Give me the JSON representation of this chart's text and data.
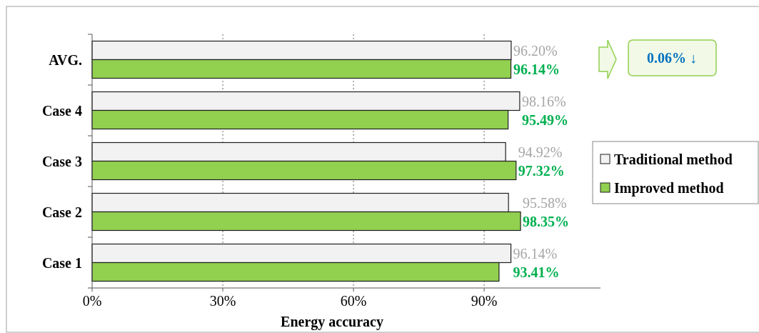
{
  "chart_data": {
    "type": "bar",
    "orientation": "horizontal",
    "xlabel": "Energy accuracy",
    "categories": [
      "AVG.",
      "Case 4",
      "Case 3",
      "Case 2",
      "Case 1"
    ],
    "series": [
      {
        "name": "Traditional method",
        "color": "#f2f2f2",
        "values": [
          96.2,
          98.16,
          94.92,
          95.58,
          96.14
        ],
        "value_labels": [
          "96.20%",
          "98.16%",
          "94.92%",
          "95.58%",
          "96.14%"
        ]
      },
      {
        "name": "Improved method",
        "color": "#92d050",
        "values": [
          96.14,
          95.49,
          97.32,
          98.35,
          93.41
        ],
        "value_labels": [
          "96.14%",
          "95.49%",
          "97.32%",
          "98.35%",
          "93.41%"
        ]
      }
    ],
    "xlim": [
      0,
      116.7
    ],
    "xticks": [
      {
        "value": 0,
        "label": "0%"
      },
      {
        "value": 30,
        "label": "30%"
      },
      {
        "value": 60,
        "label": "60%"
      },
      {
        "value": 90,
        "label": "90%"
      }
    ],
    "grid": "x",
    "legend": "right",
    "annotations": [
      "0.06% ↓"
    ]
  }
}
